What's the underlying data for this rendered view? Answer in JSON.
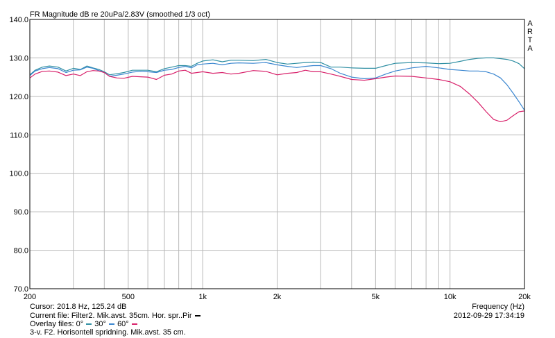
{
  "title": "FR Magnitude dB re 20uPa/2.83V (smoothed 1/3 oct)",
  "brand_letters": [
    "A",
    "R",
    "T",
    "A"
  ],
  "cursor_text": "Cursor: 201.8 Hz, 125.24 dB",
  "current_file_text": "Current file: Filter2. Mik.avst. 35cm. Hor. spr..Pir",
  "overlay_label": "Overlay files:",
  "overlay_items": [
    {
      "label": "0°",
      "color": "#2f8fa3"
    },
    {
      "label": "30°",
      "color": "#3a86d0"
    },
    {
      "label": "60°",
      "color": "#d8206a"
    }
  ],
  "description_text": "3-v. F2. Horisontell spridning. Mik.avst. 35 cm.",
  "xaxis_title": "Frequency (Hz)",
  "timestamp": "2012-09-29  17:34:19",
  "colors": {
    "current_file_marker": "#000000",
    "grid": "#b8b8b8",
    "axis": "#000000"
  },
  "chart_data": {
    "type": "line",
    "title": "FR Magnitude dB re 20uPa/2.83V (smoothed 1/3 oct)",
    "xlabel": "Frequency (Hz)",
    "ylabel": "",
    "xscale": "log",
    "xlim": [
      200,
      20000
    ],
    "ylim": [
      70,
      140
    ],
    "grid": true,
    "x_ticks": [
      {
        "value": 200,
        "label": "200"
      },
      {
        "value": 500,
        "label": "500"
      },
      {
        "value": 1000,
        "label": "1k"
      },
      {
        "value": 2000,
        "label": "2k"
      },
      {
        "value": 5000,
        "label": "5k"
      },
      {
        "value": 10000,
        "label": "10k"
      },
      {
        "value": 20000,
        "label": "20k"
      }
    ],
    "x_minor_grid": [
      300,
      400,
      600,
      700,
      800,
      900,
      3000,
      4000,
      6000,
      7000,
      8000,
      9000
    ],
    "y_ticks": [
      {
        "value": 70,
        "label": "70.0"
      },
      {
        "value": 80,
        "label": "80.0"
      },
      {
        "value": 90,
        "label": "90.0"
      },
      {
        "value": 100,
        "label": "100.0"
      },
      {
        "value": 110,
        "label": "110.0"
      },
      {
        "value": 120,
        "label": "120.0"
      },
      {
        "value": 130,
        "label": "130.0"
      },
      {
        "value": 140,
        "label": "140.0"
      }
    ],
    "series": [
      {
        "name": "0°",
        "color": "#2f8fa3",
        "points": [
          [
            200,
            125.6
          ],
          [
            210,
            126.8
          ],
          [
            225,
            127.6
          ],
          [
            240,
            127.9
          ],
          [
            260,
            127.6
          ],
          [
            280,
            126.6
          ],
          [
            300,
            127.3
          ],
          [
            320,
            127.0
          ],
          [
            340,
            127.9
          ],
          [
            360,
            127.4
          ],
          [
            380,
            127.0
          ],
          [
            400,
            126.4
          ],
          [
            420,
            125.6
          ],
          [
            450,
            125.9
          ],
          [
            480,
            126.2
          ],
          [
            520,
            126.8
          ],
          [
            560,
            126.8
          ],
          [
            600,
            126.8
          ],
          [
            650,
            126.4
          ],
          [
            700,
            127.2
          ],
          [
            750,
            127.6
          ],
          [
            800,
            128.0
          ],
          [
            850,
            128.0
          ],
          [
            900,
            127.8
          ],
          [
            950,
            128.6
          ],
          [
            1000,
            129.2
          ],
          [
            1100,
            129.5
          ],
          [
            1200,
            129.0
          ],
          [
            1300,
            129.4
          ],
          [
            1400,
            129.4
          ],
          [
            1600,
            129.3
          ],
          [
            1800,
            129.6
          ],
          [
            2000,
            128.8
          ],
          [
            2200,
            128.4
          ],
          [
            2400,
            128.6
          ],
          [
            2600,
            128.8
          ],
          [
            2800,
            128.9
          ],
          [
            3000,
            128.8
          ],
          [
            3300,
            127.6
          ],
          [
            3600,
            127.6
          ],
          [
            4000,
            127.4
          ],
          [
            4500,
            127.3
          ],
          [
            5000,
            127.3
          ],
          [
            5500,
            128.0
          ],
          [
            6000,
            128.6
          ],
          [
            7000,
            128.8
          ],
          [
            8000,
            128.7
          ],
          [
            9000,
            128.5
          ],
          [
            10000,
            128.6
          ],
          [
            11000,
            129.1
          ],
          [
            12000,
            129.6
          ],
          [
            13000,
            129.9
          ],
          [
            14000,
            130.0
          ],
          [
            15000,
            130.0
          ],
          [
            16000,
            129.8
          ],
          [
            17000,
            129.6
          ],
          [
            18000,
            129.2
          ],
          [
            19000,
            128.5
          ],
          [
            20000,
            127.2
          ]
        ]
      },
      {
        "name": "30°",
        "color": "#3a86d0",
        "points": [
          [
            200,
            125.4
          ],
          [
            210,
            126.6
          ],
          [
            225,
            127.2
          ],
          [
            240,
            127.5
          ],
          [
            260,
            127.2
          ],
          [
            280,
            126.2
          ],
          [
            300,
            126.8
          ],
          [
            320,
            126.9
          ],
          [
            340,
            127.6
          ],
          [
            360,
            127.3
          ],
          [
            380,
            126.7
          ],
          [
            400,
            126.2
          ],
          [
            420,
            125.2
          ],
          [
            450,
            125.5
          ],
          [
            480,
            125.8
          ],
          [
            520,
            126.3
          ],
          [
            560,
            126.5
          ],
          [
            600,
            126.4
          ],
          [
            650,
            126.2
          ],
          [
            700,
            126.8
          ],
          [
            750,
            127.0
          ],
          [
            800,
            127.5
          ],
          [
            850,
            127.8
          ],
          [
            900,
            127.4
          ],
          [
            950,
            128.2
          ],
          [
            1000,
            128.4
          ],
          [
            1100,
            128.6
          ],
          [
            1200,
            128.2
          ],
          [
            1300,
            128.6
          ],
          [
            1400,
            128.7
          ],
          [
            1600,
            128.6
          ],
          [
            1800,
            128.8
          ],
          [
            2000,
            128.2
          ],
          [
            2200,
            127.8
          ],
          [
            2400,
            127.5
          ],
          [
            2600,
            127.8
          ],
          [
            2800,
            128.0
          ],
          [
            3000,
            128.0
          ],
          [
            3300,
            127.2
          ],
          [
            3600,
            126.0
          ],
          [
            4000,
            125.0
          ],
          [
            4500,
            124.6
          ],
          [
            5000,
            124.8
          ],
          [
            5500,
            125.8
          ],
          [
            6000,
            126.6
          ],
          [
            7000,
            127.4
          ],
          [
            8000,
            127.8
          ],
          [
            9000,
            127.4
          ],
          [
            10000,
            127.0
          ],
          [
            11000,
            126.8
          ],
          [
            12000,
            126.6
          ],
          [
            13000,
            126.6
          ],
          [
            14000,
            126.4
          ],
          [
            15000,
            125.8
          ],
          [
            16000,
            124.8
          ],
          [
            17000,
            123.0
          ],
          [
            18000,
            120.8
          ],
          [
            19000,
            118.6
          ],
          [
            20000,
            116.4
          ]
        ]
      },
      {
        "name": "60°",
        "color": "#d8206a",
        "points": [
          [
            200,
            124.8
          ],
          [
            210,
            125.8
          ],
          [
            225,
            126.5
          ],
          [
            240,
            126.6
          ],
          [
            260,
            126.3
          ],
          [
            280,
            125.4
          ],
          [
            300,
            125.8
          ],
          [
            320,
            125.4
          ],
          [
            340,
            126.4
          ],
          [
            360,
            126.7
          ],
          [
            380,
            126.6
          ],
          [
            400,
            126.2
          ],
          [
            420,
            125.2
          ],
          [
            450,
            124.8
          ],
          [
            480,
            124.7
          ],
          [
            520,
            125.2
          ],
          [
            560,
            125.1
          ],
          [
            600,
            125.0
          ],
          [
            650,
            124.4
          ],
          [
            700,
            125.5
          ],
          [
            750,
            125.8
          ],
          [
            800,
            126.6
          ],
          [
            850,
            126.8
          ],
          [
            900,
            126.0
          ],
          [
            950,
            126.2
          ],
          [
            1000,
            126.4
          ],
          [
            1100,
            126.0
          ],
          [
            1200,
            126.2
          ],
          [
            1300,
            125.8
          ],
          [
            1400,
            126.0
          ],
          [
            1600,
            126.7
          ],
          [
            1800,
            126.5
          ],
          [
            2000,
            125.6
          ],
          [
            2200,
            126.0
          ],
          [
            2400,
            126.2
          ],
          [
            2600,
            126.8
          ],
          [
            2800,
            126.4
          ],
          [
            3000,
            126.4
          ],
          [
            3300,
            125.8
          ],
          [
            3600,
            125.2
          ],
          [
            4000,
            124.4
          ],
          [
            4500,
            124.2
          ],
          [
            5000,
            124.6
          ],
          [
            5500,
            125.0
          ],
          [
            6000,
            125.3
          ],
          [
            7000,
            125.2
          ],
          [
            8000,
            124.8
          ],
          [
            9000,
            124.4
          ],
          [
            10000,
            123.8
          ],
          [
            11000,
            122.6
          ],
          [
            12000,
            120.6
          ],
          [
            13000,
            118.4
          ],
          [
            14000,
            116.0
          ],
          [
            15000,
            114.0
          ],
          [
            16000,
            113.4
          ],
          [
            17000,
            113.8
          ],
          [
            18000,
            115.0
          ],
          [
            19000,
            116.0
          ],
          [
            20000,
            116.2
          ]
        ]
      }
    ]
  }
}
